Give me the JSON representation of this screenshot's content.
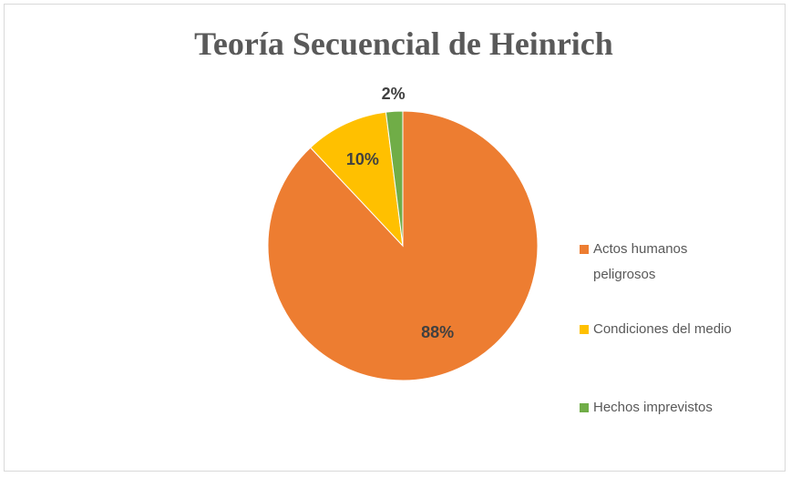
{
  "chart_data": {
    "type": "pie",
    "title": "Teoría Secuencial de Heinrich",
    "categories": [
      "Actos humanos peligrosos",
      "Condiciones del medio",
      "Hechos imprevistos"
    ],
    "values": [
      88,
      10,
      2
    ],
    "value_labels": [
      "88%",
      "10%",
      "2%"
    ],
    "colors": [
      "#ed7d31",
      "#ffc000",
      "#70ad47"
    ],
    "legend": "right"
  }
}
